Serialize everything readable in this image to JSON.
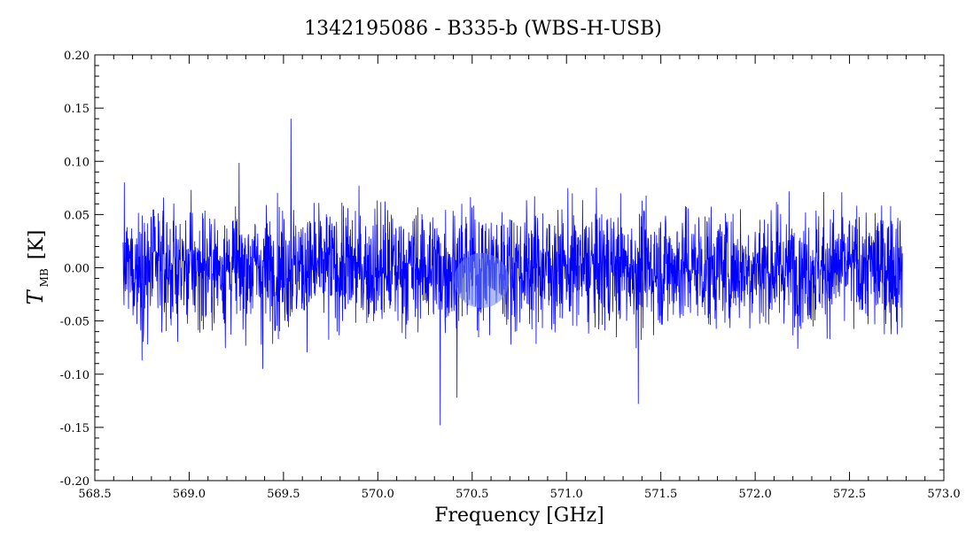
{
  "chart_data": {
    "type": "line",
    "title": "1342195086 - B335-b (WBS-H-USB)",
    "xlabel": "Frequency [GHz]",
    "ylabel": {
      "symbol": "T",
      "subscript": "MB",
      "unit": "[K]"
    },
    "xlim": [
      568.5,
      573.0
    ],
    "ylim": [
      -0.2,
      0.2
    ],
    "x_ticks": [
      "568.5",
      "569.0",
      "569.5",
      "570.0",
      "570.5",
      "571.0",
      "571.5",
      "572.0",
      "572.5",
      "573.0"
    ],
    "y_ticks": [
      "-0.20",
      "-0.15",
      "-0.10",
      "-0.05",
      "0.00",
      "0.05",
      "0.10",
      "0.15",
      "0.20"
    ],
    "grid": false,
    "series": [
      {
        "color": "#0000ff",
        "x_range": [
          568.65,
          572.78
        ],
        "baseline": 0.0,
        "noise_rms": 0.028,
        "notable_points": [
          {
            "x": 569.54,
            "y": 0.14
          },
          {
            "x": 570.33,
            "y": -0.148
          },
          {
            "x": 570.42,
            "y": -0.122
          },
          {
            "x": 571.38,
            "y": -0.128
          },
          {
            "x": 568.78,
            "y": -0.072
          },
          {
            "x": 569.39,
            "y": -0.095
          }
        ]
      }
    ],
    "highlight": {
      "x": 570.55,
      "y": -0.012,
      "color": "#6f86e8"
    }
  }
}
